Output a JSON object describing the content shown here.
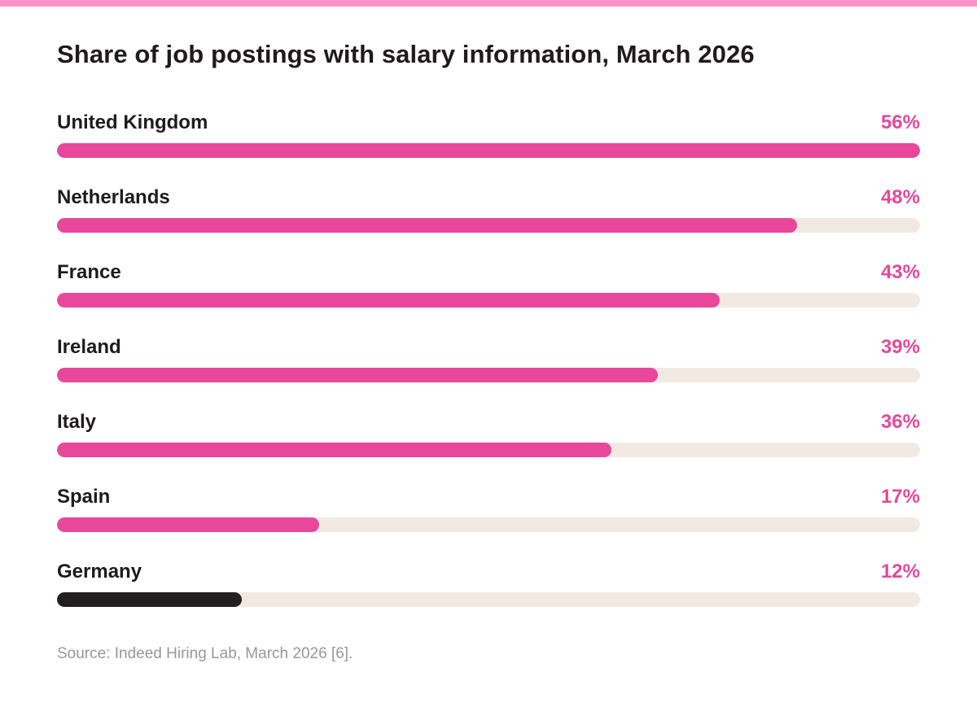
{
  "chart_data": {
    "type": "bar",
    "orientation": "horizontal",
    "title": "Share of job postings with salary information, March 2026",
    "categories": [
      "United Kingdom",
      "Netherlands",
      "France",
      "Ireland",
      "Italy",
      "Spain",
      "Germany"
    ],
    "values": [
      56,
      48,
      43,
      39,
      36,
      17,
      12
    ],
    "value_labels": [
      "56%",
      "48%",
      "43%",
      "39%",
      "36%",
      "17%",
      "12%"
    ],
    "highlighted_category": "Germany",
    "xlim": [
      0,
      56
    ],
    "grid": false,
    "legend": "none"
  },
  "source": "Source: Indeed Hiring Lab, March 2026 [6].",
  "colors": {
    "accent": "#e8479b",
    "highlight": "#231f20",
    "track": "#f2e9e3",
    "top_stripe": "#fb92c8",
    "text": "#1f1b1c",
    "muted_text": "#9b9697"
  }
}
